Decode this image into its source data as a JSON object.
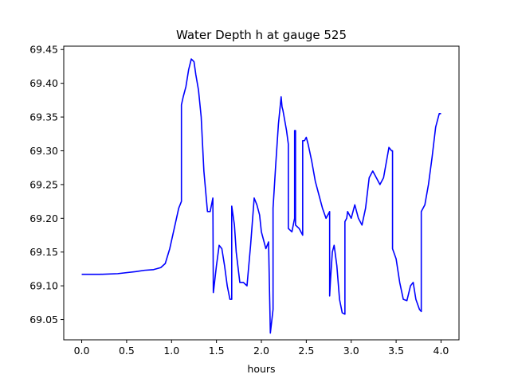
{
  "chart_data": {
    "type": "line",
    "title": "Water Depth h at gauge 525",
    "xlabel": "hours",
    "ylabel": "",
    "xlim": [
      -0.2,
      4.2
    ],
    "ylim": [
      69.02,
      69.455
    ],
    "xticks": [
      0.0,
      0.5,
      1.0,
      1.5,
      2.0,
      2.5,
      3.0,
      3.5,
      4.0
    ],
    "xtick_labels": [
      "0.0",
      "0.5",
      "1.0",
      "1.5",
      "2.0",
      "2.5",
      "3.0",
      "3.5",
      "4.0"
    ],
    "yticks": [
      69.05,
      69.1,
      69.15,
      69.2,
      69.25,
      69.3,
      69.35,
      69.4,
      69.45
    ],
    "ytick_labels": [
      "69.05",
      "69.10",
      "69.15",
      "69.20",
      "69.25",
      "69.30",
      "69.35",
      "69.40",
      "69.45"
    ],
    "grid": false,
    "series": [
      {
        "color": "#0000ff",
        "x": [
          0.0,
          0.2,
          0.4,
          0.6,
          0.7,
          0.8,
          0.88,
          0.93,
          0.98,
          1.03,
          1.08,
          1.11,
          1.11,
          1.13,
          1.16,
          1.19,
          1.22,
          1.25,
          1.27,
          1.3,
          1.33,
          1.36,
          1.4,
          1.43,
          1.46,
          1.465,
          1.47,
          1.5,
          1.53,
          1.56,
          1.59,
          1.62,
          1.65,
          1.67,
          1.67,
          1.7,
          1.72,
          1.76,
          1.8,
          1.84,
          1.88,
          1.92,
          1.95,
          1.98,
          2.0,
          2.02,
          2.05,
          2.08,
          2.1,
          2.1,
          2.13,
          2.13,
          2.16,
          2.19,
          2.22,
          2.23,
          2.24,
          2.28,
          2.3,
          2.3,
          2.34,
          2.37,
          2.37,
          2.38,
          2.38,
          2.42,
          2.46,
          2.46,
          2.48,
          2.5,
          2.52,
          2.56,
          2.6,
          2.64,
          2.68,
          2.72,
          2.76,
          2.76,
          2.77,
          2.79,
          2.81,
          2.84,
          2.87,
          2.9,
          2.93,
          2.93,
          2.95,
          2.96,
          3.0,
          3.04,
          3.08,
          3.12,
          3.16,
          3.2,
          3.24,
          3.28,
          3.32,
          3.36,
          3.4,
          3.42,
          3.45,
          3.46,
          3.46,
          3.5,
          3.54,
          3.58,
          3.62,
          3.66,
          3.69,
          3.72,
          3.76,
          3.78,
          3.78,
          3.82,
          3.86,
          3.9,
          3.94,
          3.98,
          4.0
        ],
        "y": [
          69.117,
          69.117,
          69.118,
          69.121,
          69.123,
          69.124,
          69.127,
          69.133,
          69.155,
          69.185,
          69.215,
          69.225,
          69.368,
          69.38,
          69.395,
          69.42,
          69.436,
          69.432,
          69.413,
          69.39,
          69.35,
          69.27,
          69.21,
          69.21,
          69.23,
          69.09,
          69.095,
          69.13,
          69.16,
          69.155,
          69.13,
          69.1,
          69.08,
          69.08,
          69.218,
          69.19,
          69.15,
          69.105,
          69.105,
          69.1,
          69.16,
          69.23,
          69.22,
          69.205,
          69.18,
          69.17,
          69.155,
          69.165,
          69.03,
          69.03,
          69.065,
          69.215,
          69.28,
          69.34,
          69.38,
          69.365,
          69.36,
          69.33,
          69.31,
          69.185,
          69.18,
          69.2,
          69.33,
          69.33,
          69.19,
          69.185,
          69.175,
          69.315,
          69.315,
          69.32,
          69.31,
          69.285,
          69.255,
          69.235,
          69.215,
          69.2,
          69.21,
          69.085,
          69.11,
          69.15,
          69.16,
          69.13,
          69.08,
          69.06,
          69.058,
          69.195,
          69.2,
          69.21,
          69.2,
          69.22,
          69.2,
          69.19,
          69.215,
          69.26,
          69.27,
          69.26,
          69.25,
          69.26,
          69.29,
          69.305,
          69.3,
          69.3,
          69.155,
          69.14,
          69.105,
          69.08,
          69.078,
          69.1,
          69.105,
          69.08,
          69.065,
          69.062,
          69.21,
          69.22,
          69.25,
          69.29,
          69.335,
          69.355,
          69.355
        ]
      }
    ]
  }
}
